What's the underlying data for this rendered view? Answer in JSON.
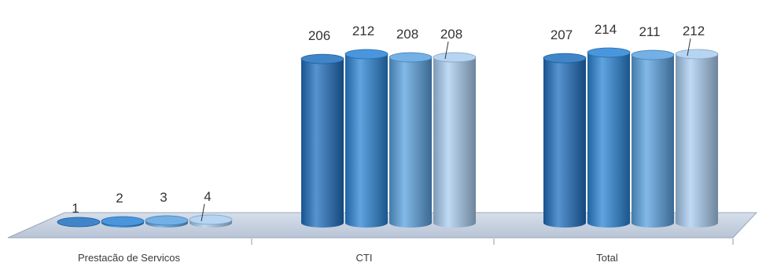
{
  "chart_data": {
    "type": "bar",
    "style": "3d-cylinder",
    "categories": [
      "Prestacão de Servicos",
      "CTI",
      "Total"
    ],
    "series": [
      {
        "values": [
          1,
          206,
          207
        ],
        "color": "#1f6fbf"
      },
      {
        "values": [
          2,
          212,
          214
        ],
        "color": "#2a84d6"
      },
      {
        "values": [
          3,
          208,
          211
        ],
        "color": "#5aa2e0"
      },
      {
        "values": [
          4,
          208,
          212
        ],
        "color": "#a9cdf0"
      }
    ],
    "data_labels": [
      [
        "1",
        "206",
        "207"
      ],
      [
        "2",
        "212",
        "214"
      ],
      [
        "3",
        "208",
        "211"
      ],
      [
        "4",
        "208",
        "212"
      ]
    ],
    "title": "",
    "xlabel": "",
    "ylabel": "",
    "ylim": [
      0,
      214
    ],
    "grid": false,
    "legend": "none"
  }
}
